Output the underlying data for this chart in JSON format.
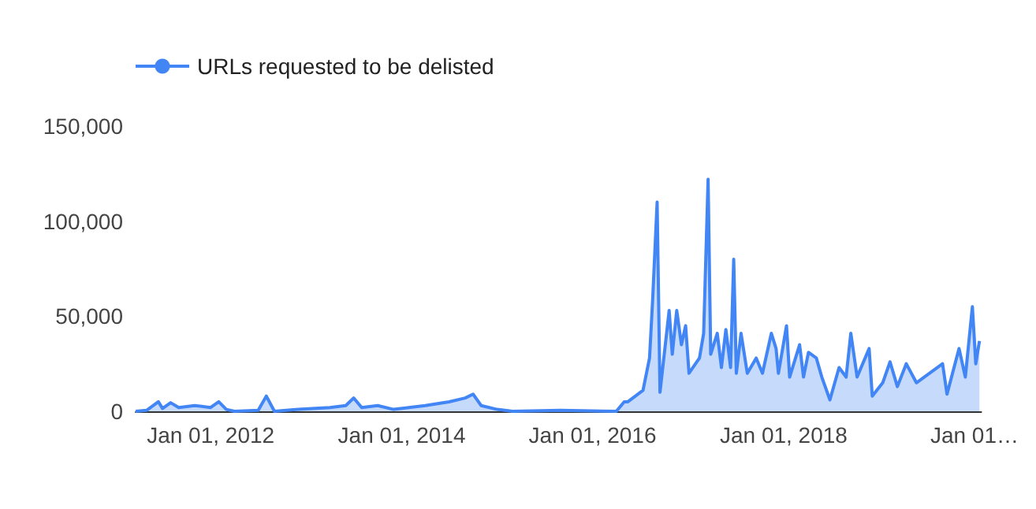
{
  "chart_data": {
    "type": "area",
    "legend": "top left",
    "grid": false,
    "xlim": [
      "2011-03-20",
      "2020-01-27"
    ],
    "xticks": [
      {
        "value": "2012-01-01",
        "label": "Jan 01, 2012"
      },
      {
        "value": "2014-01-01",
        "label": "Jan 01, 2014"
      },
      {
        "value": "2016-01-01",
        "label": "Jan 01, 2016"
      },
      {
        "value": "2018-01-01",
        "label": "Jan 01, 2018"
      },
      {
        "value": "2020-01-01",
        "label": "Jan 01…"
      }
    ],
    "ylim": [
      0,
      150000
    ],
    "yticks": [
      {
        "value": 0,
        "label": "0"
      },
      {
        "value": 50000,
        "label": "50,000"
      },
      {
        "value": 100000,
        "label": "100,000"
      },
      {
        "value": 150000,
        "label": "150,000"
      }
    ],
    "series": [
      {
        "name": "URLs requested to be delisted",
        "color": "#4285f4",
        "x": [
          "2011-03-20",
          "2011-05-01",
          "2011-06-15",
          "2011-07-01",
          "2011-08-01",
          "2011-09-01",
          "2011-11-01",
          "2012-01-01",
          "2012-02-01",
          "2012-03-01",
          "2012-04-01",
          "2012-07-01",
          "2012-08-01",
          "2012-09-01",
          "2012-12-01",
          "2013-04-01",
          "2013-06-01",
          "2013-07-01",
          "2013-08-01",
          "2013-10-01",
          "2013-12-01",
          "2014-04-01",
          "2014-07-01",
          "2014-09-01",
          "2014-10-01",
          "2014-11-01",
          "2015-01-01",
          "2015-03-01",
          "2015-09-01",
          "2016-04-01",
          "2016-05-01",
          "2016-05-15",
          "2016-07-12",
          "2016-08-06",
          "2016-08-18",
          "2016-09-04",
          "2016-09-15",
          "2016-10-20",
          "2016-11-01",
          "2016-11-18",
          "2016-12-06",
          "2016-12-22",
          "2017-01-04",
          "2017-02-13",
          "2017-03-01",
          "2017-03-18",
          "2017-03-28",
          "2017-04-22",
          "2017-05-08",
          "2017-05-25",
          "2017-06-12",
          "2017-06-24",
          "2017-07-04",
          "2017-07-22",
          "2017-08-15",
          "2017-09-18",
          "2017-10-12",
          "2017-11-15",
          "2017-12-03",
          "2017-12-12",
          "2018-01-12",
          "2018-01-24",
          "2018-03-03",
          "2018-03-18",
          "2018-04-06",
          "2018-05-06",
          "2018-05-27",
          "2018-06-27",
          "2018-08-01",
          "2018-08-28",
          "2018-09-15",
          "2018-10-09",
          "2018-11-24",
          "2018-12-06",
          "2019-01-15",
          "2019-02-12",
          "2019-03-12",
          "2019-04-15",
          "2019-05-24",
          "2019-07-03",
          "2019-09-01",
          "2019-09-18",
          "2019-11-03",
          "2019-11-27",
          "2019-12-24",
          "2020-01-06",
          "2020-01-20"
        ],
        "values": [
          0,
          500,
          5000,
          1500,
          4500,
          2000,
          3000,
          2000,
          5000,
          1000,
          0,
          500,
          8000,
          0,
          1000,
          2000,
          3000,
          7000,
          2000,
          3000,
          1000,
          3000,
          5000,
          7000,
          9000,
          3000,
          1000,
          0,
          500,
          0,
          5000,
          5000,
          11000,
          28000,
          59000,
          110000,
          10000,
          53000,
          30000,
          53000,
          35000,
          45000,
          20000,
          28000,
          41000,
          122000,
          30000,
          41000,
          23000,
          43000,
          23000,
          80000,
          20000,
          41000,
          20000,
          28000,
          20000,
          41000,
          33000,
          20000,
          45000,
          18000,
          35000,
          18000,
          31000,
          28000,
          18000,
          6000,
          23000,
          18000,
          41000,
          18000,
          33000,
          8000,
          15000,
          26000,
          13000,
          25000,
          15000,
          19000,
          25000,
          9000,
          33000,
          18000,
          55000,
          25000,
          37000
        ]
      }
    ]
  }
}
